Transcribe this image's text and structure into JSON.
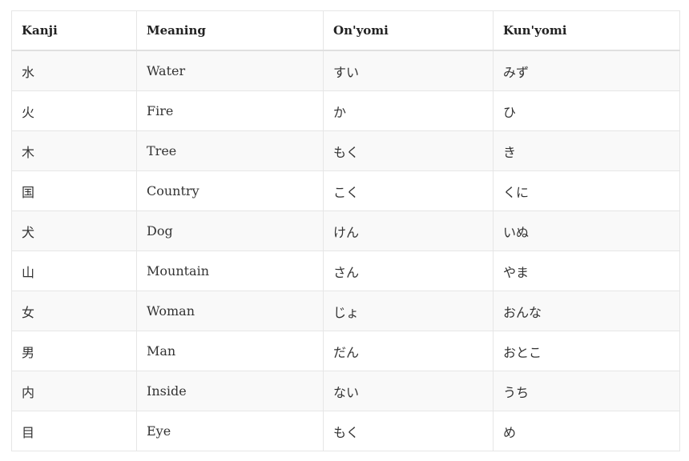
{
  "table": {
    "headers": [
      "Kanji",
      "Meaning",
      "On'yomi",
      "Kun'yomi"
    ],
    "rows": [
      [
        "水",
        "Water",
        "すい",
        "みず"
      ],
      [
        "火",
        "Fire",
        "か",
        "ひ"
      ],
      [
        "木",
        "Tree",
        "もく",
        "き"
      ],
      [
        "国",
        "Country",
        "こく",
        "くに"
      ],
      [
        "犬",
        "Dog",
        "けん",
        "いぬ"
      ],
      [
        "山",
        "Mountain",
        "さん",
        "やま"
      ],
      [
        "女",
        "Woman",
        "じょ",
        "おんな"
      ],
      [
        "男",
        "Man",
        "だん",
        "おとこ"
      ],
      [
        "内",
        "Inside",
        "ない",
        "うち"
      ],
      [
        "目",
        "Eye",
        "もく",
        "め"
      ]
    ]
  }
}
